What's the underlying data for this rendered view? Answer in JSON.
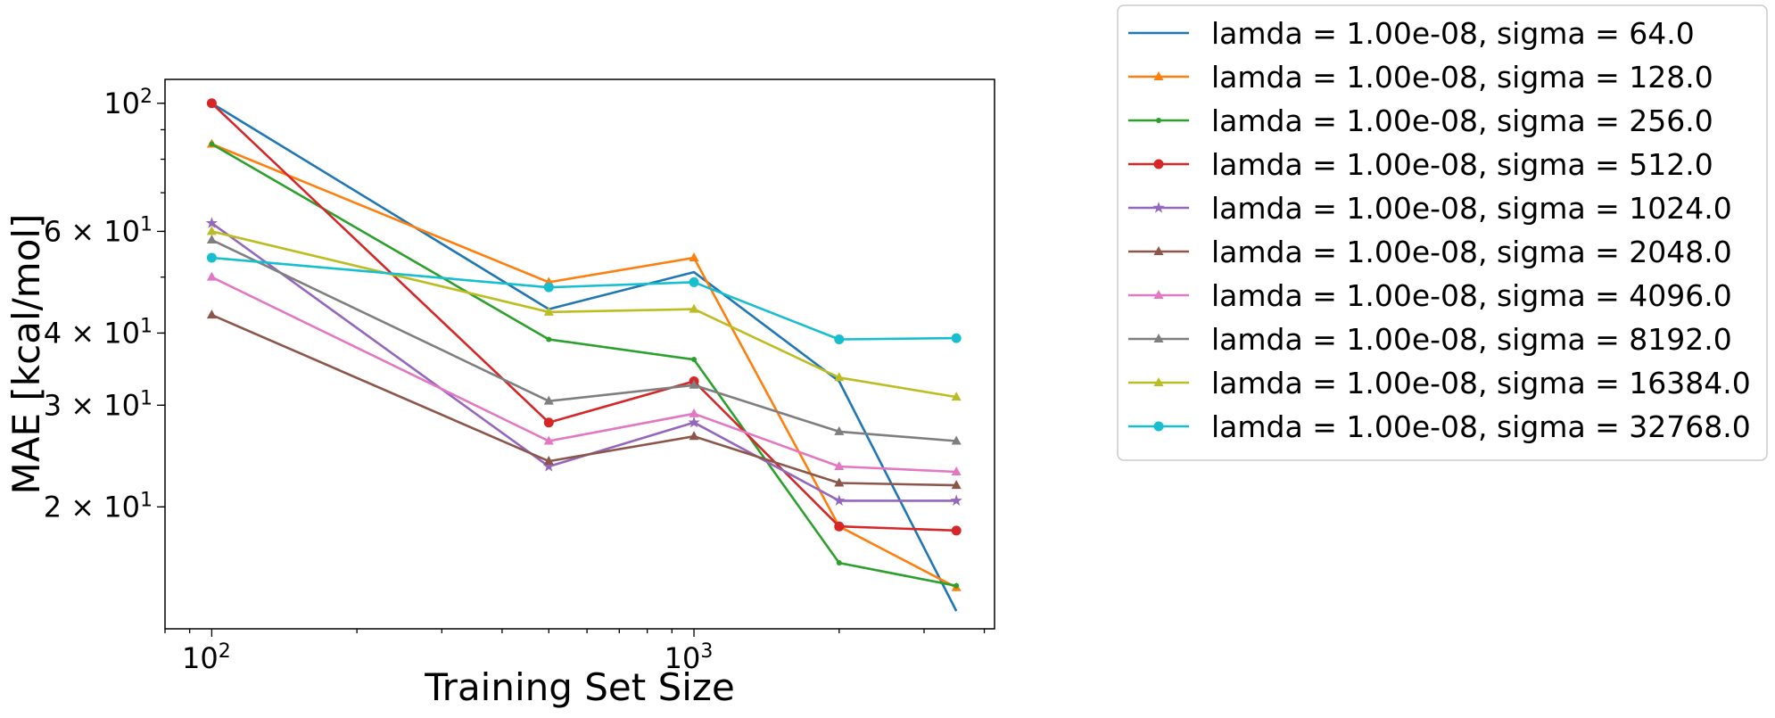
{
  "chart_data": {
    "type": "line",
    "xlabel": "Training Set Size",
    "ylabel": "MAE [kcal/mol]",
    "x_scale": "log",
    "y_scale": "log",
    "xlim": [
      80,
      4200
    ],
    "ylim": [
      12.3,
      110
    ],
    "x": [
      100,
      500,
      1000,
      2000,
      3500
    ],
    "x_ticks": [
      {
        "value": 100,
        "label": "10",
        "exp": "2"
      },
      {
        "value": 1000,
        "label": "10",
        "exp": "3"
      }
    ],
    "y_ticks": [
      {
        "value": 100,
        "label": "10",
        "exp": "2"
      },
      {
        "value": 60,
        "label": "6 × 10",
        "exp": "1"
      },
      {
        "value": 40,
        "label": "4 × 10",
        "exp": "1"
      },
      {
        "value": 30,
        "label": "3 × 10",
        "exp": "1"
      },
      {
        "value": 20,
        "label": "2 × 10",
        "exp": "1"
      }
    ],
    "legend_placement": "outside-right",
    "series": [
      {
        "name": "lamda = 1.00e-08, sigma = 64.0",
        "color": "#1f77b4",
        "marker": "none",
        "values": [
          100,
          44,
          51,
          33,
          13.2
        ]
      },
      {
        "name": "lamda = 1.00e-08, sigma = 128.0",
        "color": "#ff7f0e",
        "marker": "tri",
        "values": [
          85,
          49,
          54,
          18.5,
          14.5
        ]
      },
      {
        "name": "lamda = 1.00e-08, sigma = 256.0",
        "color": "#2ca02c",
        "marker": "dot",
        "values": [
          85,
          39,
          36,
          16,
          14.6
        ]
      },
      {
        "name": "lamda = 1.00e-08, sigma = 512.0",
        "color": "#d62728",
        "marker": "circle",
        "values": [
          100,
          28,
          33,
          18.5,
          18.2
        ]
      },
      {
        "name": "lamda = 1.00e-08, sigma = 1024.0",
        "color": "#9467bd",
        "marker": "star",
        "values": [
          62,
          23.5,
          28,
          20.5,
          20.5
        ]
      },
      {
        "name": "lamda = 1.00e-08, sigma = 2048.0",
        "color": "#8c564b",
        "marker": "tri",
        "values": [
          43,
          24,
          26.5,
          22,
          21.8
        ]
      },
      {
        "name": "lamda = 1.00e-08, sigma = 4096.0",
        "color": "#e377c2",
        "marker": "tri",
        "values": [
          50,
          26,
          29,
          23.5,
          23
        ]
      },
      {
        "name": "lamda = 1.00e-08, sigma = 8192.0",
        "color": "#7f7f7f",
        "marker": "tri",
        "values": [
          58,
          30.5,
          32.5,
          27,
          26
        ]
      },
      {
        "name": "lamda = 1.00e-08, sigma = 16384.0",
        "color": "#bcbd22",
        "marker": "tri",
        "values": [
          60,
          43.5,
          44,
          33.5,
          31
        ]
      },
      {
        "name": "lamda = 1.00e-08, sigma = 32768.0",
        "color": "#17becf",
        "marker": "circle",
        "values": [
          54,
          48,
          49,
          39,
          39.2
        ]
      }
    ]
  }
}
